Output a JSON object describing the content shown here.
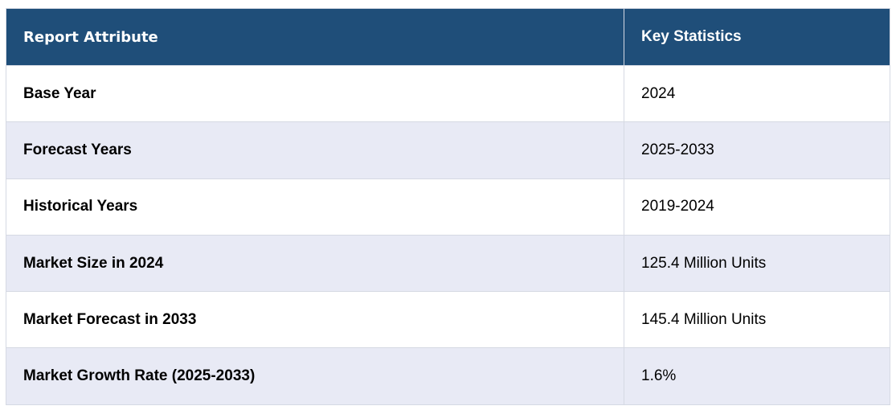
{
  "table": {
    "headers": {
      "attribute": "Report Attribute",
      "statistics": "Key Statistics"
    },
    "rows": [
      {
        "attribute": "Base Year",
        "value": "2024"
      },
      {
        "attribute": "Forecast Years",
        "value": "2025-2033"
      },
      {
        "attribute": "Historical Years",
        "value": "2019-2024"
      },
      {
        "attribute": "Market Size in 2024",
        "value": "125.4 Million Units"
      },
      {
        "attribute": "Market Forecast in 2033",
        "value": "145.4 Million Units"
      },
      {
        "attribute": "Market Growth Rate (2025-2033)",
        "value": "1.6%"
      }
    ]
  },
  "colors": {
    "header_background": "#1f4e79",
    "header_text": "#ffffff",
    "row_alt_background": "#e8eaf5",
    "row_background": "#ffffff",
    "border": "#d5d9e3"
  }
}
